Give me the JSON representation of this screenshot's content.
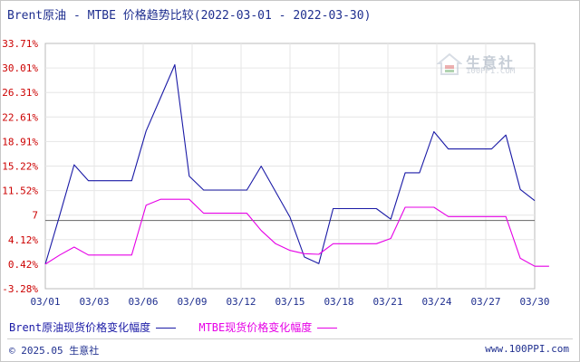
{
  "title": "Brent原油 - MTBE 价格趋势比较(2022-03-01 - 2022-03-30)",
  "watermark": {
    "name": "生意社",
    "url": "100PPI.COM"
  },
  "footer": {
    "copyright": "© 2025.05 生意社",
    "url": "www.100PPI.com"
  },
  "chart_data": {
    "type": "line",
    "title": "Brent原油 - MTBE 价格趋势比较(2022-03-01 - 2022-03-30)",
    "y_ticks": [
      "33.71%",
      "30.01%",
      "26.31%",
      "22.61%",
      "18.91%",
      "15.22%",
      "11.52%",
      "7",
      "4.12%",
      "0.42%",
      "-3.28%"
    ],
    "x_ticks": [
      "03/01",
      "03/03",
      "03/06",
      "03/09",
      "03/12",
      "03/15",
      "03/18",
      "03/21",
      "03/24",
      "03/27",
      "03/30"
    ],
    "ylim": [
      -3.28,
      33.71
    ],
    "reference_line": 7,
    "legend_placement": "bottom",
    "colors": {
      "brent": "#1a1aa6",
      "mtbe": "#e600e6",
      "reference": "#666666"
    },
    "series": [
      {
        "name": "Brent原油现货价格变化幅度",
        "points": [
          [
            "03/01",
            0.42
          ],
          [
            "03/02",
            7.8
          ],
          [
            "03/03",
            15.4
          ],
          [
            "03/04",
            13.0
          ],
          [
            "03/07",
            13.0
          ],
          [
            "03/08",
            20.5
          ],
          [
            "03/09",
            25.5
          ],
          [
            "03/10",
            30.5
          ],
          [
            "03/11",
            13.7
          ],
          [
            "03/12",
            11.6
          ],
          [
            "03/13",
            11.6
          ],
          [
            "03/15",
            11.6
          ],
          [
            "03/16",
            15.2
          ],
          [
            "03/18",
            7.5
          ],
          [
            "03/19",
            1.5
          ],
          [
            "03/20",
            0.5
          ],
          [
            "03/21",
            8.8
          ],
          [
            "03/22",
            8.8
          ],
          [
            "03/24",
            8.8
          ],
          [
            "03/25",
            7.2
          ],
          [
            "03/26",
            14.2
          ],
          [
            "03/27",
            14.2
          ],
          [
            "03/28",
            20.4
          ],
          [
            "03/29",
            17.8
          ],
          [
            "03/31",
            17.8
          ],
          [
            "04/01",
            17.8
          ],
          [
            "04/02",
            19.9
          ],
          [
            "04/03",
            11.7
          ],
          [
            "04/04",
            10.0
          ]
        ]
      },
      {
        "name": "MTBE现货价格变化幅度",
        "points": [
          [
            "03/01",
            0.42
          ],
          [
            "03/02",
            1.8
          ],
          [
            "03/03",
            3.0
          ],
          [
            "03/04",
            1.8
          ],
          [
            "03/07",
            1.8
          ],
          [
            "03/08",
            9.3
          ],
          [
            "03/09",
            10.2
          ],
          [
            "03/11",
            10.2
          ],
          [
            "03/12",
            8.1
          ],
          [
            "03/15",
            8.1
          ],
          [
            "03/16",
            5.5
          ],
          [
            "03/17",
            3.5
          ],
          [
            "03/18",
            2.5
          ],
          [
            "03/19",
            2.0
          ],
          [
            "03/20",
            1.9
          ],
          [
            "03/21",
            3.5
          ],
          [
            "03/24",
            3.5
          ],
          [
            "03/25",
            4.3
          ],
          [
            "03/26",
            9.0
          ],
          [
            "03/28",
            9.0
          ],
          [
            "03/29",
            7.6
          ],
          [
            "04/01",
            7.6
          ],
          [
            "04/02",
            7.6
          ],
          [
            "04/03",
            1.3
          ],
          [
            "04/04",
            0.1
          ],
          [
            "04/05",
            0.1
          ]
        ]
      }
    ]
  }
}
